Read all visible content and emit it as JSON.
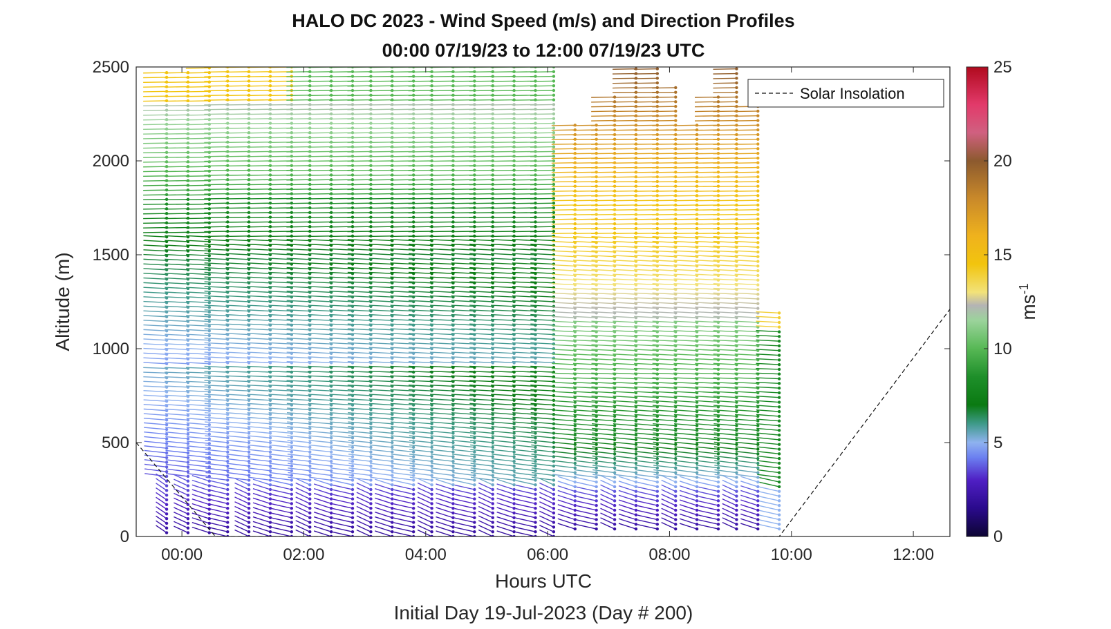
{
  "chart_data": {
    "type": "scatter",
    "subtype": "wind-barb-profiles",
    "title_line1": "HALO DC 2023 - Wind Speed (m/s) and Direction Profiles",
    "title_line2": "00:00 07/19/23 to 12:00 07/19/23  UTC",
    "xlabel": "Hours UTC",
    "xlabel2": "Initial Day 19-Jul-2023 (Day # 200)",
    "ylabel": "Altitude (m)",
    "xlim": [
      -0.75,
      12.6
    ],
    "ylim": [
      0,
      2500
    ],
    "xticks": [
      0,
      2,
      4,
      6,
      8,
      10,
      12
    ],
    "xtick_labels": [
      "00:00",
      "02:00",
      "04:00",
      "06:00",
      "08:00",
      "10:00",
      "12:00"
    ],
    "yticks": [
      0,
      500,
      1000,
      1500,
      2000,
      2500
    ],
    "ytick_labels": [
      "0",
      "500",
      "1000",
      "1500",
      "2000",
      "2500"
    ],
    "colorbar": {
      "label": "ms",
      "label_sup": "-1",
      "range": [
        0,
        25
      ],
      "ticks": [
        0,
        5,
        10,
        15,
        20,
        25
      ],
      "tick_labels": [
        "0",
        "5",
        "10",
        "15",
        "20",
        "25"
      ],
      "stops": [
        {
          "v": 0,
          "color": "#0d0533"
        },
        {
          "v": 1.5,
          "color": "#2a0a8c"
        },
        {
          "v": 3,
          "color": "#4f1fc4"
        },
        {
          "v": 4.2,
          "color": "#6b7ff0"
        },
        {
          "v": 5,
          "color": "#8fb2ef"
        },
        {
          "v": 6,
          "color": "#3f9a8a"
        },
        {
          "v": 7,
          "color": "#0a7a12"
        },
        {
          "v": 8.5,
          "color": "#1e8f2a"
        },
        {
          "v": 10,
          "color": "#57b855"
        },
        {
          "v": 11.5,
          "color": "#9bd39b"
        },
        {
          "v": 12.3,
          "color": "#b4b4b4"
        },
        {
          "v": 13,
          "color": "#f2e27a"
        },
        {
          "v": 14.5,
          "color": "#f2c40e"
        },
        {
          "v": 16,
          "color": "#efb21d"
        },
        {
          "v": 18,
          "color": "#c9892a"
        },
        {
          "v": 20,
          "color": "#8c5a2e"
        },
        {
          "v": 21.5,
          "color": "#d06080"
        },
        {
          "v": 23,
          "color": "#e23a6a"
        },
        {
          "v": 25,
          "color": "#b00a1e"
        }
      ]
    },
    "legend": {
      "label": "Solar Insolation",
      "placement": "top-right"
    },
    "solar_insolation": {
      "x": [
        -0.75,
        0.55,
        9.8,
        12.6
      ],
      "y": [
        500,
        0,
        0,
        1210
      ]
    },
    "profiles": [
      {
        "t": -0.25,
        "top": 2480,
        "bottom": 20
      },
      {
        "t": 0.1,
        "top": 2480,
        "bottom": 20
      },
      {
        "t": 0.45,
        "top": 2500,
        "bottom": 20
      },
      {
        "t": 0.75,
        "top": 2500,
        "bottom": 0
      },
      {
        "t": 1.1,
        "top": 2500,
        "bottom": 0
      },
      {
        "t": 1.45,
        "top": 2500,
        "bottom": 0
      },
      {
        "t": 1.8,
        "top": 2500,
        "bottom": 0
      },
      {
        "t": 2.1,
        "top": 2500,
        "bottom": 0
      },
      {
        "t": 2.45,
        "top": 2500,
        "bottom": 0
      },
      {
        "t": 2.8,
        "top": 2500,
        "bottom": 0
      },
      {
        "t": 3.1,
        "top": 2500,
        "bottom": 0
      },
      {
        "t": 3.45,
        "top": 2500,
        "bottom": 0
      },
      {
        "t": 3.8,
        "top": 2500,
        "bottom": 0
      },
      {
        "t": 4.1,
        "top": 2500,
        "bottom": 0
      },
      {
        "t": 4.45,
        "top": 2500,
        "bottom": 0
      },
      {
        "t": 4.8,
        "top": 2500,
        "bottom": 0
      },
      {
        "t": 5.1,
        "top": 2500,
        "bottom": 0
      },
      {
        "t": 5.45,
        "top": 2500,
        "bottom": 0
      },
      {
        "t": 5.8,
        "top": 2500,
        "bottom": 0
      },
      {
        "t": 6.1,
        "top": 2500,
        "bottom": 0
      },
      {
        "t": 6.45,
        "top": 2200,
        "bottom": 40
      },
      {
        "t": 6.8,
        "top": 2200,
        "bottom": 40
      },
      {
        "t": 7.1,
        "top": 2350,
        "bottom": 40
      },
      {
        "t": 7.45,
        "top": 2500,
        "bottom": 40
      },
      {
        "t": 7.8,
        "top": 2500,
        "bottom": 40
      },
      {
        "t": 8.1,
        "top": 2400,
        "bottom": 40
      },
      {
        "t": 8.45,
        "top": 2200,
        "bottom": 40
      },
      {
        "t": 8.8,
        "top": 2350,
        "bottom": 40
      },
      {
        "t": 9.1,
        "top": 2500,
        "bottom": 40
      },
      {
        "t": 9.45,
        "top": 2300,
        "bottom": 40
      },
      {
        "t": 9.8,
        "top": 1200,
        "bottom": 40
      }
    ]
  }
}
